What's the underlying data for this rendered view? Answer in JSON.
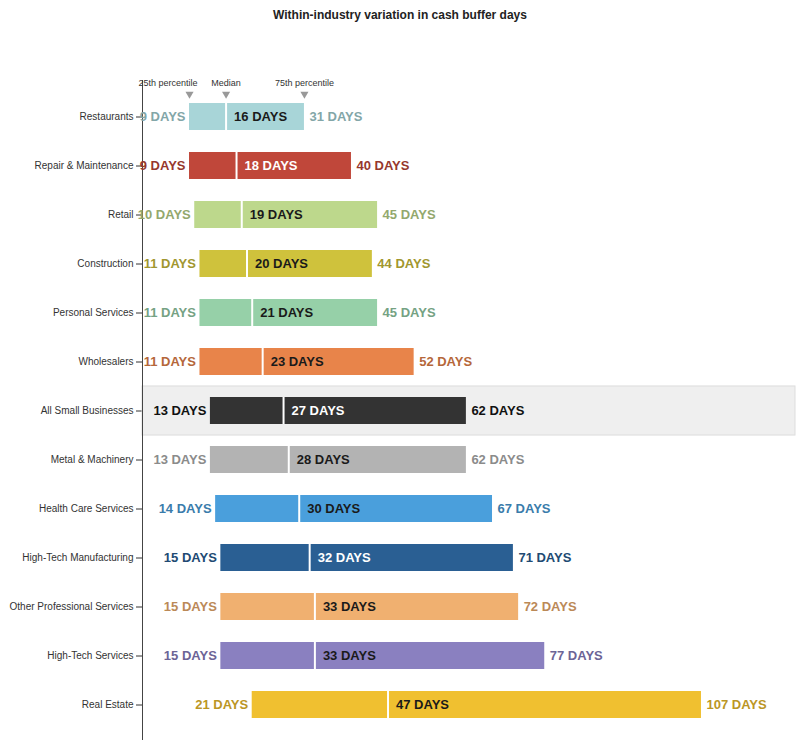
{
  "chart_data": {
    "type": "bar",
    "title": "Within-industry variation in cash buffer days",
    "orientation": "horizontal",
    "categories": [
      "Restaurants",
      "Repair & Maintenance",
      "Retail",
      "Construction",
      "Personal Services",
      "Wholesalers",
      "All Small Businesses",
      "Metal & Machinery",
      "Health Care Services",
      "High-Tech Manufacturing",
      "Other Professional Services",
      "High-Tech Services",
      "Real Estate"
    ],
    "series": [
      {
        "name": "25th percentile",
        "values": [
          9,
          9,
          10,
          11,
          11,
          11,
          13,
          13,
          14,
          15,
          15,
          15,
          21
        ],
        "value_labels": [
          "9 DAYS",
          "9 DAYS",
          "10 DAYS",
          "11 DAYS",
          "11 DAYS",
          "11 DAYS",
          "13 DAYS",
          "13 DAYS",
          "14 DAYS",
          "15 DAYS",
          "15 DAYS",
          "15 DAYS",
          "21 DAYS"
        ]
      },
      {
        "name": "Median",
        "values": [
          16,
          18,
          19,
          20,
          21,
          23,
          27,
          28,
          30,
          32,
          33,
          33,
          47
        ],
        "value_labels": [
          "16 DAYS",
          "18 DAYS",
          "19 DAYS",
          "20 DAYS",
          "21 DAYS",
          "23 DAYS",
          "27 DAYS",
          "28 DAYS",
          "30 DAYS",
          "32 DAYS",
          "33 DAYS",
          "33 DAYS",
          "47 DAYS"
        ]
      },
      {
        "name": "75th percentile",
        "values": [
          31,
          40,
          45,
          44,
          45,
          52,
          62,
          62,
          67,
          71,
          72,
          77,
          107
        ],
        "value_labels": [
          "31 DAYS",
          "40 DAYS",
          "45 DAYS",
          "44 DAYS",
          "45 DAYS",
          "52 DAYS",
          "62 DAYS",
          "62 DAYS",
          "67 DAYS",
          "71 DAYS",
          "72 DAYS",
          "77 DAYS",
          "107 DAYS"
        ]
      }
    ],
    "colors": [
      "#a8d5d8",
      "#c0473a",
      "#bdd88c",
      "#cfc23c",
      "#96d0a8",
      "#e8844a",
      "#333333",
      "#b3b3b3",
      "#4a9fdc",
      "#2a5f93",
      "#f0b070",
      "#8a80c0",
      "#f0c030"
    ],
    "xlim": [
      0,
      125
    ],
    "data_labels": true,
    "tick_labels": "y",
    "grid": false
  }
}
